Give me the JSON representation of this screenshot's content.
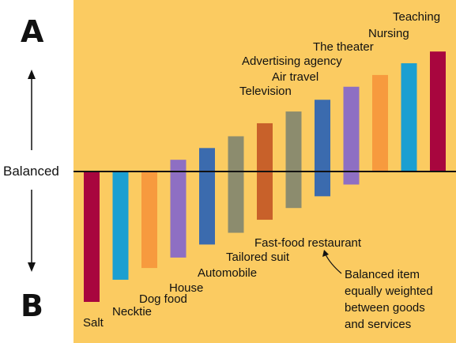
{
  "axis": {
    "top_letter": "A",
    "bottom_letter": "B",
    "middle_label": "Balanced"
  },
  "note": {
    "lines": [
      "Balanced item",
      "equally weighted",
      "between goods",
      "and services"
    ]
  },
  "colors": {
    "background": "#FBCB61",
    "baseline": "#111111",
    "arrow": "#111111"
  },
  "chart_data": {
    "type": "bar",
    "categories": [
      "Salt",
      "Necktie",
      "Dog food",
      "House",
      "Automobile",
      "Tailored suit",
      "Fast-food restaurant",
      "Television",
      "Air travel",
      "Advertising agency",
      "The theater",
      "Nursing",
      "Teaching"
    ],
    "ranges": [
      [
        -100,
        0
      ],
      [
        -83,
        0
      ],
      [
        -74,
        0
      ],
      [
        -66,
        9
      ],
      [
        -56,
        18
      ],
      [
        -47,
        27
      ],
      [
        -37,
        37
      ],
      [
        -28,
        46
      ],
      [
        -19,
        55
      ],
      [
        -10,
        65
      ],
      [
        0,
        74
      ],
      [
        0,
        83
      ],
      [
        0,
        92
      ]
    ],
    "colors": [
      "#A8063E",
      "#1B9FD1",
      "#F79A3E",
      "#8E6FC3",
      "#3B6BAE",
      "#8C8C6E",
      "#C8612A",
      "#8C8C6E",
      "#3B6BAE",
      "#8E6FC3",
      "#F79A3E",
      "#1B9FD1",
      "#A8063E"
    ]
  }
}
